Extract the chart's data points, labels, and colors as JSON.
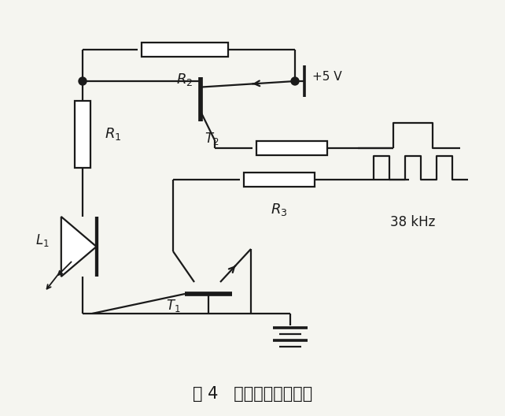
{
  "title": "图 4   动态光强控制电路",
  "title_fontsize": 15,
  "bg_color": "#f5f5f0",
  "line_color": "#1a1a1a",
  "lw": 1.6
}
